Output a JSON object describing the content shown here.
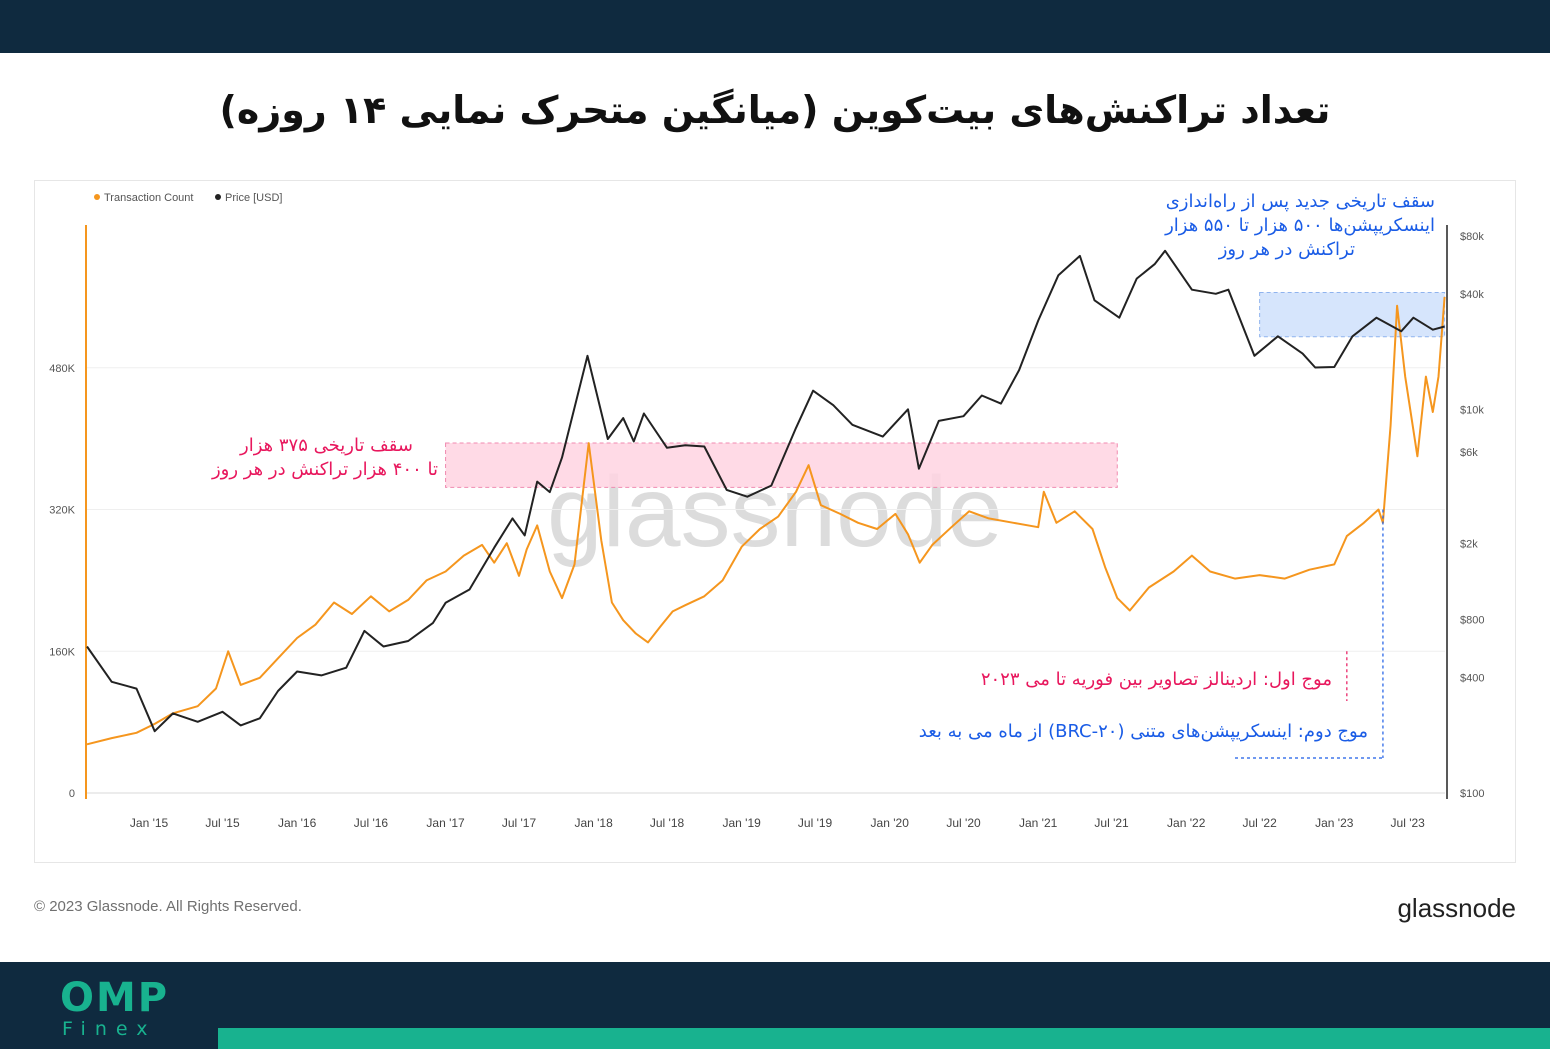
{
  "title": "تعداد تراکنش‌های بیت‌کوین (میانگین متحرک نمایی ۱۴ روزه)",
  "colors": {
    "transaction": "#f5961e",
    "price": "#222222",
    "pink_band": "#ffd3e2",
    "blue_band": "#cfe0fb",
    "pink_text": "#e8175d",
    "blue_text": "#1a5ce6",
    "brand_dark": "#0f2a3f",
    "brand_green": "#18b28f"
  },
  "brand": {
    "main": "OMP",
    "sub": "Finex"
  },
  "footer": {
    "copyright": "© 2023 Glassnode. All Rights Reserved.",
    "logo": "glassnode"
  },
  "watermark": "glassnode",
  "annotations": {
    "top_right": [
      "سقف تاریخی جدید پس از راه‌اندازی",
      "اینسکریپشن‌ها ۵۰۰ هزار تا ۵۵۰ هزار",
      "تراکنش در هر روز"
    ],
    "left": [
      "سقف تاریخی ۳۷۵ هزار",
      "تا ۴۰۰ هزار تراکنش در هر روز"
    ],
    "wave1": "موج اول: اردینالز تصاویر بین فوریه تا می ۲۰۲۳",
    "wave2": "موج دوم: اینسکریپشن‌های متنی (BRC-۲۰) از ماه می به بعد"
  },
  "chart_data": {
    "type": "line",
    "legend": {
      "placement": "top-left",
      "items": [
        "Transaction Count",
        "Price [USD]"
      ]
    },
    "x_ticks": [
      "Jan '15",
      "Jul '15",
      "Jan '16",
      "Jul '16",
      "Jan '17",
      "Jul '17",
      "Jan '18",
      "Jul '18",
      "Jan '19",
      "Jul '19",
      "Jan '20",
      "Jul '20",
      "Jan '21",
      "Jul '21",
      "Jan '22",
      "Jul '22",
      "Jan '23",
      "Jul '23"
    ],
    "xlim": [
      "2014-08-01",
      "2023-10-01"
    ],
    "y_left": {
      "ticks": [
        "0",
        "160K",
        "320K",
        "480K"
      ],
      "tick_values": [
        0,
        160000,
        320000,
        480000
      ],
      "ylim": [
        0,
        640000
      ]
    },
    "y_right": {
      "scale": "log",
      "ticks": [
        "$100",
        "$400",
        "$800",
        "$2k",
        "$6k",
        "$10k",
        "$40k",
        "$80k"
      ],
      "tick_values": [
        100,
        400,
        800,
        2000,
        6000,
        10000,
        40000,
        80000
      ],
      "ylim": [
        100,
        80000
      ]
    },
    "grid": true,
    "highlights": [
      {
        "color": "pink",
        "x": [
          "2017-01-01",
          "2021-07-15"
        ],
        "y_left": [
          345000,
          395000
        ]
      },
      {
        "color": "blue",
        "x": [
          "2022-07-01",
          "2023-09-30"
        ],
        "y_left": [
          515000,
          565000
        ]
      }
    ],
    "markers": [
      {
        "color": "pink",
        "x": "2023-02-01",
        "y_left_range": [
          0,
          160000
        ]
      },
      {
        "color": "blue",
        "x": "2023-05-01",
        "y_left_range": [
          0,
          320000
        ]
      }
    ],
    "series": [
      {
        "name": "Transaction Count",
        "axis": "left",
        "points": [
          [
            "2014-08-01",
            55000
          ],
          [
            "2014-10-01",
            62000
          ],
          [
            "2014-12-01",
            68000
          ],
          [
            "2015-01-15",
            78000
          ],
          [
            "2015-03-01",
            90000
          ],
          [
            "2015-05-01",
            98000
          ],
          [
            "2015-06-15",
            118000
          ],
          [
            "2015-07-15",
            160000
          ],
          [
            "2015-08-15",
            122000
          ],
          [
            "2015-10-01",
            130000
          ],
          [
            "2015-11-15",
            152000
          ],
          [
            "2016-01-01",
            175000
          ],
          [
            "2016-02-15",
            190000
          ],
          [
            "2016-04-01",
            215000
          ],
          [
            "2016-05-15",
            202000
          ],
          [
            "2016-07-01",
            222000
          ],
          [
            "2016-08-15",
            205000
          ],
          [
            "2016-10-01",
            218000
          ],
          [
            "2016-11-15",
            240000
          ],
          [
            "2017-01-01",
            250000
          ],
          [
            "2017-02-15",
            268000
          ],
          [
            "2017-04-01",
            280000
          ],
          [
            "2017-05-01",
            260000
          ],
          [
            "2017-06-01",
            282000
          ],
          [
            "2017-07-01",
            245000
          ],
          [
            "2017-07-20",
            275000
          ],
          [
            "2017-08-15",
            302000
          ],
          [
            "2017-09-15",
            250000
          ],
          [
            "2017-10-15",
            220000
          ],
          [
            "2017-11-15",
            258000
          ],
          [
            "2017-12-20",
            395000
          ],
          [
            "2018-01-20",
            285000
          ],
          [
            "2018-02-15",
            215000
          ],
          [
            "2018-03-15",
            195000
          ],
          [
            "2018-04-15",
            180000
          ],
          [
            "2018-05-15",
            170000
          ],
          [
            "2018-06-15",
            188000
          ],
          [
            "2018-07-15",
            205000
          ],
          [
            "2018-08-15",
            212000
          ],
          [
            "2018-10-01",
            222000
          ],
          [
            "2018-11-15",
            240000
          ],
          [
            "2019-01-01",
            278000
          ],
          [
            "2019-02-15",
            298000
          ],
          [
            "2019-04-01",
            312000
          ],
          [
            "2019-05-15",
            340000
          ],
          [
            "2019-06-15",
            370000
          ],
          [
            "2019-07-15",
            325000
          ],
          [
            "2019-09-01",
            315000
          ],
          [
            "2019-10-15",
            305000
          ],
          [
            "2019-12-01",
            298000
          ],
          [
            "2020-01-15",
            315000
          ],
          [
            "2020-02-15",
            292000
          ],
          [
            "2020-03-15",
            260000
          ],
          [
            "2020-04-15",
            280000
          ],
          [
            "2020-06-01",
            300000
          ],
          [
            "2020-07-15",
            318000
          ],
          [
            "2020-09-01",
            310000
          ],
          [
            "2020-11-01",
            305000
          ],
          [
            "2021-01-01",
            300000
          ],
          [
            "2021-01-15",
            340000
          ],
          [
            "2021-02-15",
            305000
          ],
          [
            "2021-04-01",
            318000
          ],
          [
            "2021-05-15",
            298000
          ],
          [
            "2021-06-15",
            255000
          ],
          [
            "2021-07-15",
            220000
          ],
          [
            "2021-08-15",
            206000
          ],
          [
            "2021-10-01",
            232000
          ],
          [
            "2021-12-01",
            250000
          ],
          [
            "2022-01-15",
            268000
          ],
          [
            "2022-03-01",
            250000
          ],
          [
            "2022-05-01",
            242000
          ],
          [
            "2022-07-01",
            246000
          ],
          [
            "2022-09-01",
            242000
          ],
          [
            "2022-11-01",
            252000
          ],
          [
            "2023-01-01",
            258000
          ],
          [
            "2023-02-01",
            290000
          ],
          [
            "2023-03-15",
            305000
          ],
          [
            "2023-04-20",
            320000
          ],
          [
            "2023-05-01",
            305000
          ],
          [
            "2023-05-20",
            415000
          ],
          [
            "2023-06-05",
            550000
          ],
          [
            "2023-06-25",
            470000
          ],
          [
            "2023-07-25",
            380000
          ],
          [
            "2023-08-15",
            470000
          ],
          [
            "2023-09-01",
            430000
          ],
          [
            "2023-09-15",
            470000
          ],
          [
            "2023-09-30",
            560000
          ]
        ]
      },
      {
        "name": "Price [USD]",
        "axis": "right",
        "points": [
          [
            "2014-08-01",
            580
          ],
          [
            "2014-10-01",
            380
          ],
          [
            "2014-12-01",
            350
          ],
          [
            "2015-01-15",
            210
          ],
          [
            "2015-03-01",
            260
          ],
          [
            "2015-05-01",
            235
          ],
          [
            "2015-07-01",
            265
          ],
          [
            "2015-08-15",
            225
          ],
          [
            "2015-10-01",
            245
          ],
          [
            "2015-11-15",
            340
          ],
          [
            "2016-01-01",
            430
          ],
          [
            "2016-03-01",
            410
          ],
          [
            "2016-05-01",
            450
          ],
          [
            "2016-06-15",
            700
          ],
          [
            "2016-08-01",
            580
          ],
          [
            "2016-10-01",
            620
          ],
          [
            "2016-12-01",
            770
          ],
          [
            "2017-01-01",
            980
          ],
          [
            "2017-03-01",
            1150
          ],
          [
            "2017-05-01",
            1900
          ],
          [
            "2017-06-15",
            2700
          ],
          [
            "2017-07-15",
            2200
          ],
          [
            "2017-08-15",
            4200
          ],
          [
            "2017-09-15",
            3700
          ],
          [
            "2017-10-15",
            5600
          ],
          [
            "2017-12-17",
            19000
          ],
          [
            "2018-02-05",
            7000
          ],
          [
            "2018-03-15",
            9000
          ],
          [
            "2018-04-10",
            6800
          ],
          [
            "2018-05-05",
            9500
          ],
          [
            "2018-07-01",
            6300
          ],
          [
            "2018-08-15",
            6500
          ],
          [
            "2018-10-01",
            6400
          ],
          [
            "2018-11-25",
            3800
          ],
          [
            "2019-01-15",
            3500
          ],
          [
            "2019-03-15",
            4000
          ],
          [
            "2019-05-15",
            8000
          ],
          [
            "2019-06-26",
            12500
          ],
          [
            "2019-08-15",
            10500
          ],
          [
            "2019-10-01",
            8300
          ],
          [
            "2019-12-15",
            7200
          ],
          [
            "2020-02-15",
            10000
          ],
          [
            "2020-03-13",
            4900
          ],
          [
            "2020-05-01",
            8700
          ],
          [
            "2020-07-01",
            9200
          ],
          [
            "2020-08-15",
            11800
          ],
          [
            "2020-10-01",
            10700
          ],
          [
            "2020-11-15",
            16000
          ],
          [
            "2021-01-01",
            29000
          ],
          [
            "2021-02-20",
            50000
          ],
          [
            "2021-04-14",
            63000
          ],
          [
            "2021-05-20",
            37000
          ],
          [
            "2021-07-20",
            30000
          ],
          [
            "2021-09-01",
            48000
          ],
          [
            "2021-10-15",
            57000
          ],
          [
            "2021-11-10",
            67000
          ],
          [
            "2022-01-15",
            42000
          ],
          [
            "2022-03-15",
            40000
          ],
          [
            "2022-04-15",
            42000
          ],
          [
            "2022-06-18",
            19000
          ],
          [
            "2022-08-15",
            24000
          ],
          [
            "2022-10-15",
            19500
          ],
          [
            "2022-11-15",
            16500
          ],
          [
            "2023-01-01",
            16600
          ],
          [
            "2023-02-15",
            24000
          ],
          [
            "2023-04-15",
            30000
          ],
          [
            "2023-06-15",
            25500
          ],
          [
            "2023-07-15",
            30000
          ],
          [
            "2023-09-01",
            26000
          ],
          [
            "2023-09-30",
            27000
          ]
        ]
      }
    ]
  }
}
